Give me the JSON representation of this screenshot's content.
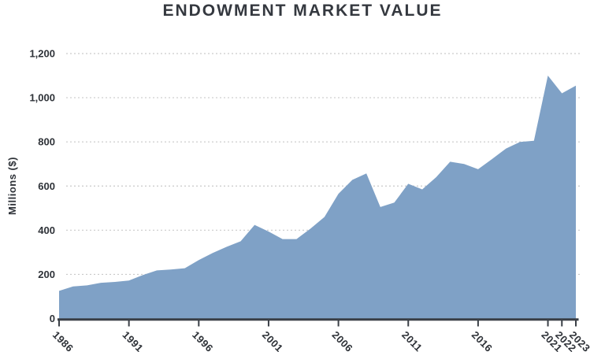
{
  "colors": {
    "background": "#FFFFFF",
    "area": "#7FA1C6",
    "axis": "#3A3F46",
    "grid": "#C9C9C9",
    "text": "#2E3238",
    "title": "#34383F"
  },
  "chart_data": {
    "type": "area",
    "title": "ENDOWMENT MARKET VALUE",
    "xlabel": "",
    "ylabel": "Millions ($)",
    "ylim": [
      0,
      1200
    ],
    "grid": "horizontal-dashed",
    "legend": "none",
    "yticks": [
      0,
      200,
      400,
      600,
      800,
      1000,
      1200
    ],
    "ytick_labels": [
      "0",
      "200",
      "400",
      "600",
      "800",
      "1,000",
      "1,200"
    ],
    "xticks": [
      1986,
      1991,
      1996,
      2001,
      2006,
      2011,
      2016,
      2021,
      2022,
      2023
    ],
    "x": [
      1986,
      1987,
      1988,
      1989,
      1990,
      1991,
      1992,
      1993,
      1994,
      1995,
      1996,
      1997,
      1998,
      1999,
      2000,
      2001,
      2002,
      2003,
      2004,
      2005,
      2006,
      2007,
      2008,
      2009,
      2010,
      2011,
      2012,
      2013,
      2014,
      2015,
      2016,
      2017,
      2018,
      2019,
      2020,
      2021,
      2022,
      2023
    ],
    "values": [
      125,
      145,
      150,
      162,
      166,
      172,
      197,
      218,
      222,
      228,
      265,
      297,
      325,
      350,
      424,
      394,
      360,
      360,
      407,
      460,
      565,
      628,
      657,
      505,
      525,
      610,
      585,
      640,
      710,
      700,
      676,
      722,
      770,
      800,
      805,
      1100,
      1020,
      1055
    ]
  }
}
